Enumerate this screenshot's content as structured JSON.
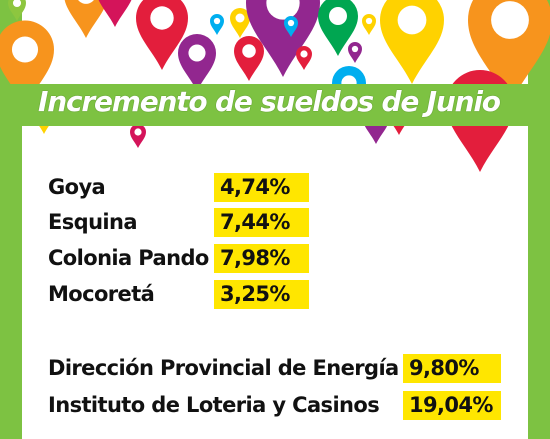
{
  "title": "Incremento de sueldos de Junio",
  "municipios": [
    {
      "name": "Goya",
      "value": "4,74%"
    },
    {
      "name": "Esquina",
      "value": "7,44%"
    },
    {
      "name": "Colonia Pando",
      "value": "7,98%"
    },
    {
      "name": "Mocoretá",
      "value": "3,25%"
    }
  ],
  "organismos": [
    {
      "name": "Dirección Provincial de Energía",
      "value": "9,80%"
    },
    {
      "name": "Instituto de Loteria y Casinos",
      "value": "19,04%"
    }
  ],
  "colors": {
    "green": "#7dc242",
    "highlight": "#ffe600",
    "pins": [
      "#e31e3c",
      "#f7941d",
      "#ffd200",
      "#8dc63f",
      "#00aeef",
      "#92278f",
      "#00a651",
      "#d4145a"
    ]
  },
  "icons": [
    "map-pin-icon"
  ]
}
